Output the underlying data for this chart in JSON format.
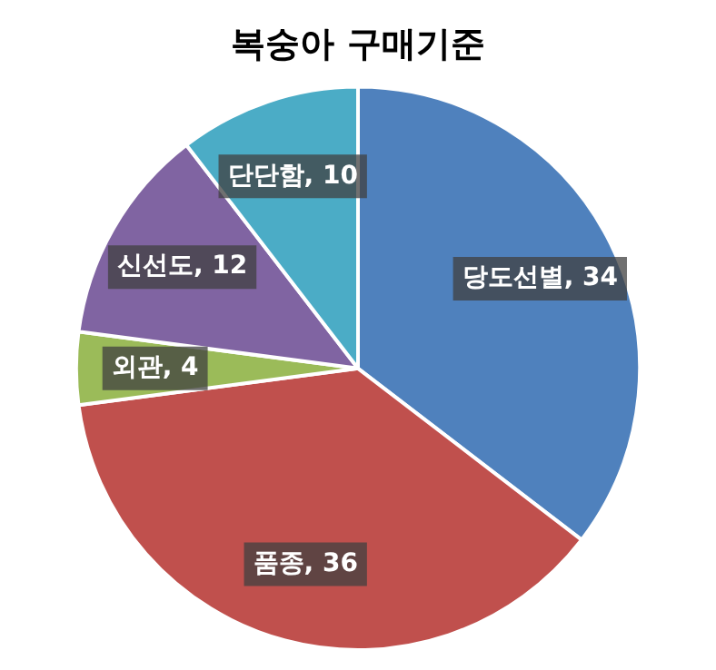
{
  "chart_data": {
    "type": "pie",
    "title": "복숭아 구매기준",
    "categories": [
      "당도선별",
      "품종",
      "외관",
      "신선도",
      "단단함"
    ],
    "values": [
      34,
      36,
      4,
      12,
      10
    ],
    "value_labels": [
      ", 34",
      ", 36",
      ", 4",
      ", 12",
      ", 10"
    ],
    "colors": [
      "#4f81bd",
      "#c0504d",
      "#9bbb59",
      "#8064a2",
      "#4bacc6"
    ],
    "legend": false
  }
}
